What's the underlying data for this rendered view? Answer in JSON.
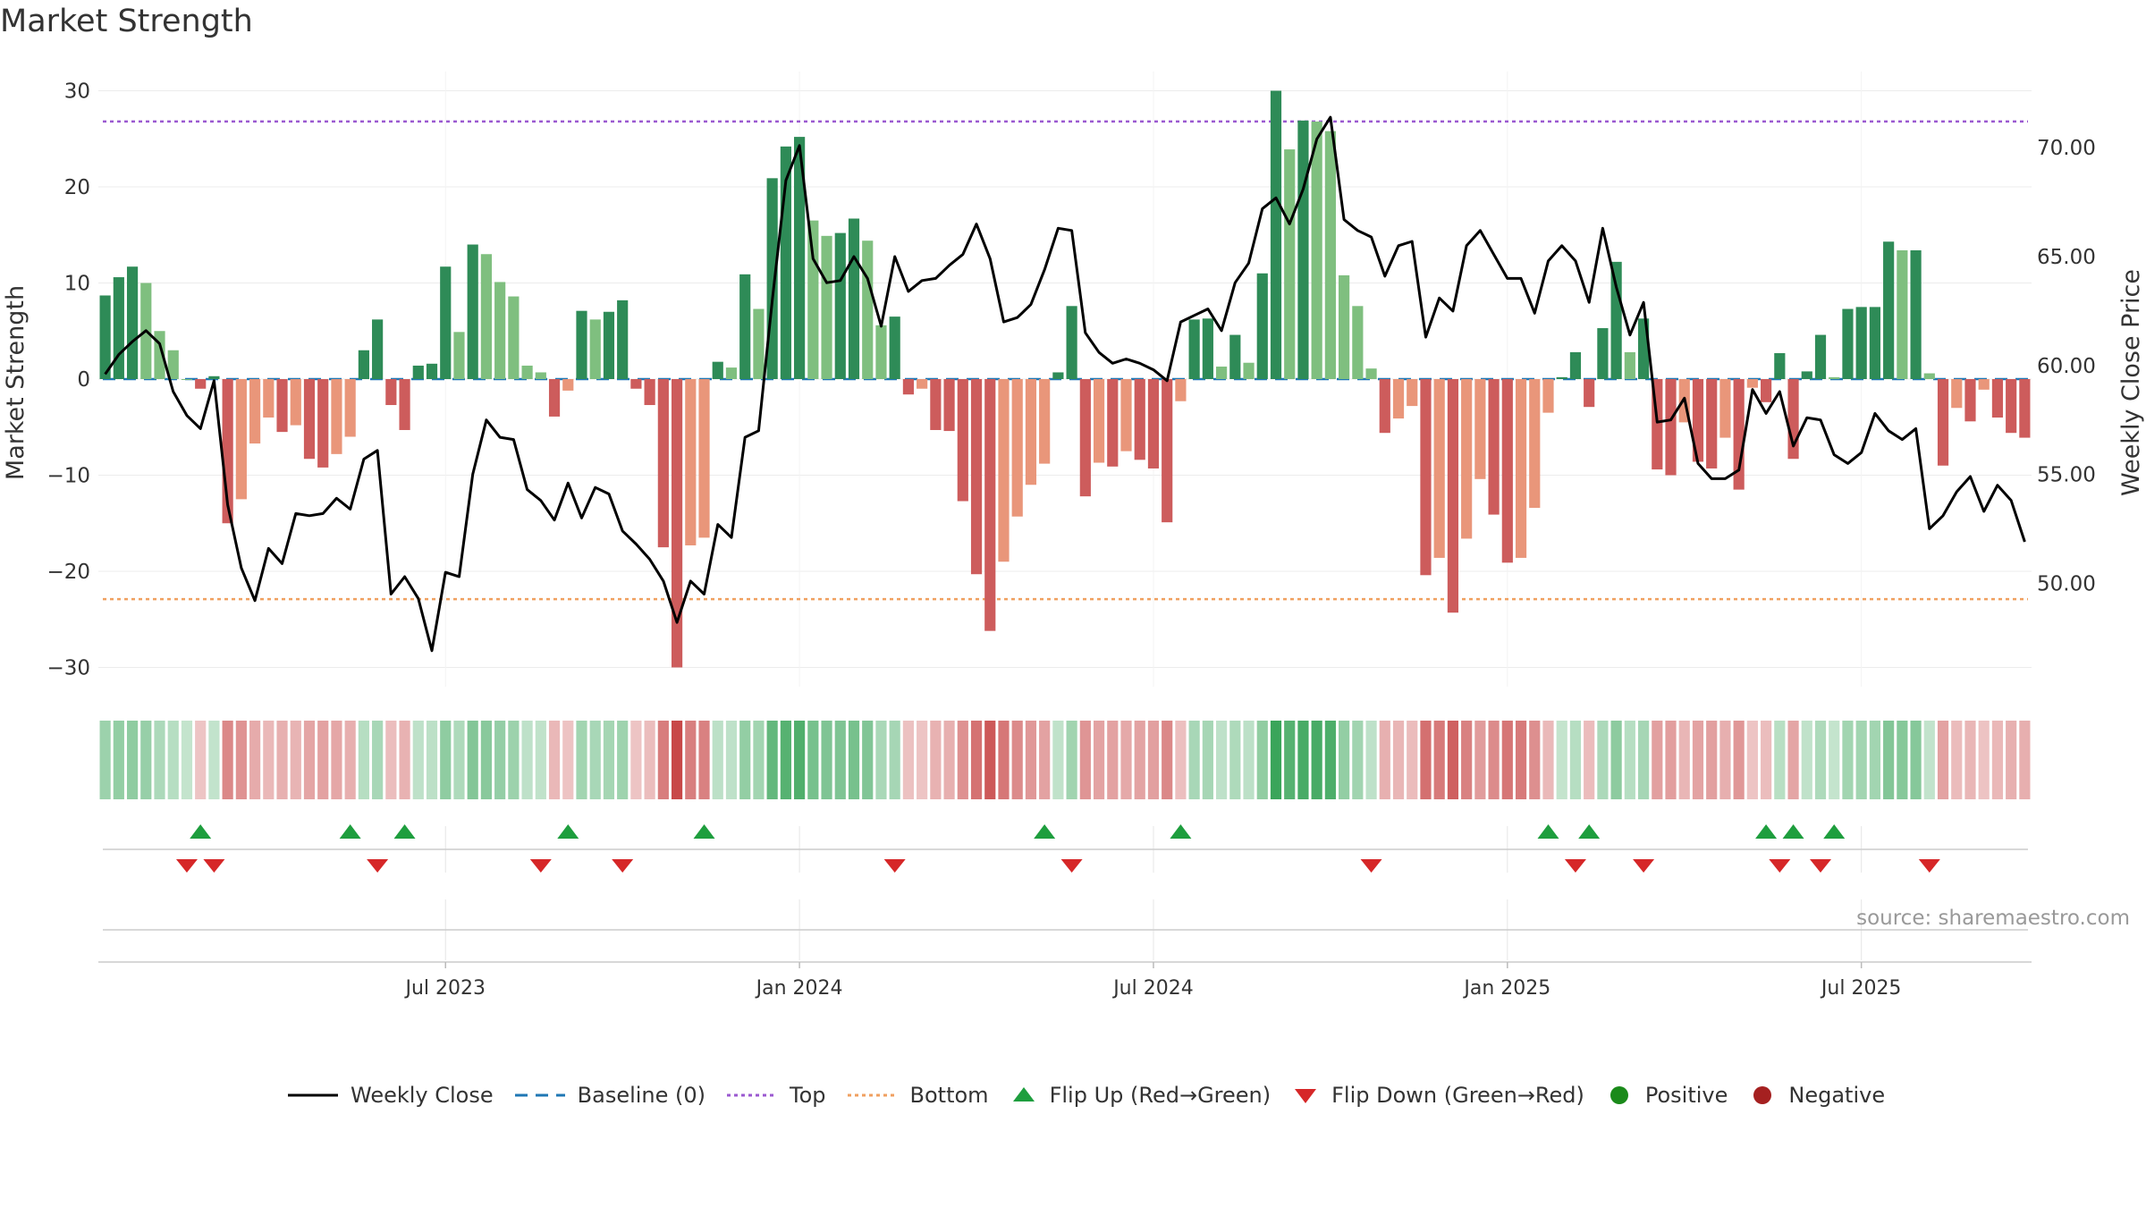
{
  "title": "Market Strength",
  "source": "source: sharemaestro.com",
  "colors": {
    "pos_strong": "#2e8b57",
    "pos_weak": "#7fbf7f",
    "neg_strong": "#cd5c5c",
    "neg_weak": "#e9967a",
    "close": "#000000",
    "baseline": "#1f77b4",
    "top": "#9b59d0",
    "bottom": "#f0a060",
    "flip_up": "#1e9e3e",
    "flip_down": "#d62728",
    "positive": "#1a8a1a",
    "negative": "#a52020"
  },
  "legend": [
    {
      "key": "close",
      "label": "Weekly Close"
    },
    {
      "key": "baseline",
      "label": "Baseline (0)"
    },
    {
      "key": "top",
      "label": "Top"
    },
    {
      "key": "bottom",
      "label": "Bottom"
    },
    {
      "key": "flip_up",
      "label": "Flip Up (Red→Green)"
    },
    {
      "key": "flip_down",
      "label": "Flip Down (Green→Red)"
    },
    {
      "key": "positive",
      "label": "Positive"
    },
    {
      "key": "negative",
      "label": "Negative"
    }
  ],
  "chart_data": {
    "type": "bar",
    "title": "Market Strength",
    "ylabel": "Market Strength",
    "y2label": "Weekly Close Price",
    "ylim": [
      -32,
      32
    ],
    "y2lim": [
      45.25,
      73.5
    ],
    "yticks": [
      30,
      20,
      10,
      0,
      -10,
      -20,
      -30
    ],
    "ytick_labels": [
      "30",
      "20",
      "10",
      "0",
      "−10",
      "−20",
      "−30"
    ],
    "y2ticks": [
      70,
      65,
      60,
      55,
      50
    ],
    "y2tick_labels": [
      "70.00",
      "65.00",
      "60.00",
      "55.00",
      "50.00"
    ],
    "top_level": 26.8,
    "bottom_level": -22.9,
    "xtick_labels": [
      "Jul 2023",
      "Jan 2024",
      "Jul 2024",
      "Jan 2025",
      "Jul 2025"
    ],
    "xtick_weeks": [
      25,
      51,
      77,
      103,
      129
    ],
    "strength": [
      8.7,
      10.6,
      11.7,
      10,
      5,
      3,
      0,
      -1,
      0.3,
      -15,
      -12.5,
      -6.7,
      -4,
      -5.5,
      -4.8,
      -8.3,
      -9.2,
      -7.8,
      -6,
      3,
      6.2,
      -2.7,
      -5.3,
      1.4,
      1.6,
      11.7,
      4.9,
      14,
      13,
      10.1,
      8.6,
      1.4,
      0.7,
      -3.9,
      -1.2,
      7.1,
      6.2,
      7,
      8.2,
      -1,
      -2.7,
      -17.5,
      -30,
      -17.3,
      -16.5,
      1.8,
      1.2,
      10.9,
      7.3,
      20.9,
      24.2,
      25.2,
      16.5,
      14.9,
      15.2,
      16.7,
      14.4,
      5.6,
      6.5,
      -1.6,
      -1,
      -5.3,
      -5.4,
      -12.7,
      -20.3,
      -26.2,
      -19,
      -14.3,
      -11,
      -8.8,
      0.7,
      7.6,
      -12.2,
      -8.7,
      -9.1,
      -7.5,
      -8.4,
      -9.3,
      -14.9,
      -2.3,
      6.2,
      6.3,
      1.3,
      4.6,
      1.7,
      11,
      30,
      23.9,
      26.9,
      26.8,
      25.8,
      10.8,
      7.6,
      1.1,
      -5.6,
      -4.1,
      -2.8,
      -20.4,
      -18.6,
      -24.3,
      -16.6,
      -10.4,
      -14.1,
      -19.1,
      -18.6,
      -13.4,
      -3.5,
      0.2,
      2.8,
      -2.9,
      5.3,
      12.2,
      2.8,
      6.3,
      -9.4,
      -10,
      -4.5,
      -8.6,
      -9.3,
      -6.1,
      -11.5,
      -0.9,
      -2.4,
      2.7,
      -8.3,
      0.8,
      4.6,
      0.2,
      7.3,
      7.5,
      7.5,
      14.3,
      13.4,
      13.4,
      0.6,
      -9,
      -3,
      -4.4,
      -1.1,
      -4,
      -5.6,
      -6.1
    ],
    "weekly_close": [
      59.6,
      60.5,
      61.1,
      61.6,
      61,
      58.8,
      57.7,
      57.1,
      59.3,
      53.6,
      50.7,
      49.2,
      51.6,
      50.9,
      53.2,
      53.1,
      53.2,
      53.9,
      53.4,
      55.7,
      56.1,
      49.5,
      50.3,
      49.3,
      46.9,
      50.5,
      50.3,
      55,
      57.5,
      56.7,
      56.6,
      54.3,
      53.8,
      52.9,
      54.6,
      53,
      54.4,
      54.1,
      52.4,
      51.8,
      51.1,
      50.1,
      48.2,
      50.1,
      49.5,
      52.7,
      52.1,
      56.7,
      57,
      63,
      68.5,
      70.1,
      64.9,
      63.8,
      63.9,
      65,
      64,
      61.8,
      65,
      63.4,
      63.9,
      64,
      64.6,
      65.1,
      66.5,
      64.9,
      62,
      62.2,
      62.8,
      64.4,
      66.3,
      66.2,
      61.5,
      60.6,
      60.1,
      60.3,
      60.1,
      59.8,
      59.3,
      62,
      62.3,
      62.6,
      61.6,
      63.8,
      64.7,
      67.2,
      67.7,
      66.5,
      68.1,
      70.4,
      71.4,
      66.7,
      66.2,
      65.9,
      64.1,
      65.5,
      65.7,
      61.3,
      63.1,
      62.5,
      65.5,
      66.2,
      65.1,
      64,
      64,
      62.4,
      64.8,
      65.5,
      64.8,
      62.9,
      66.3,
      63.6,
      61.4,
      62.9,
      57.4,
      57.5,
      58.5,
      55.5,
      54.8,
      54.8,
      55.2,
      58.9,
      57.8,
      58.8,
      56.3,
      57.6,
      57.5,
      55.9,
      55.5,
      56,
      57.8,
      57,
      56.6,
      57.1,
      52.5,
      53.1,
      54.2,
      54.9,
      53.3,
      54.5,
      53.8,
      51.9
    ],
    "flip_up_weeks": [
      7,
      18,
      22,
      34,
      44,
      69,
      79,
      106,
      109,
      122,
      124,
      127
    ],
    "flip_down_weeks": [
      6,
      8,
      20,
      32,
      38,
      58,
      71,
      93,
      108,
      113,
      123,
      126,
      134
    ],
    "series": [
      {
        "name": "Market Strength",
        "type": "bar"
      },
      {
        "name": "Weekly Close",
        "type": "line"
      }
    ]
  }
}
